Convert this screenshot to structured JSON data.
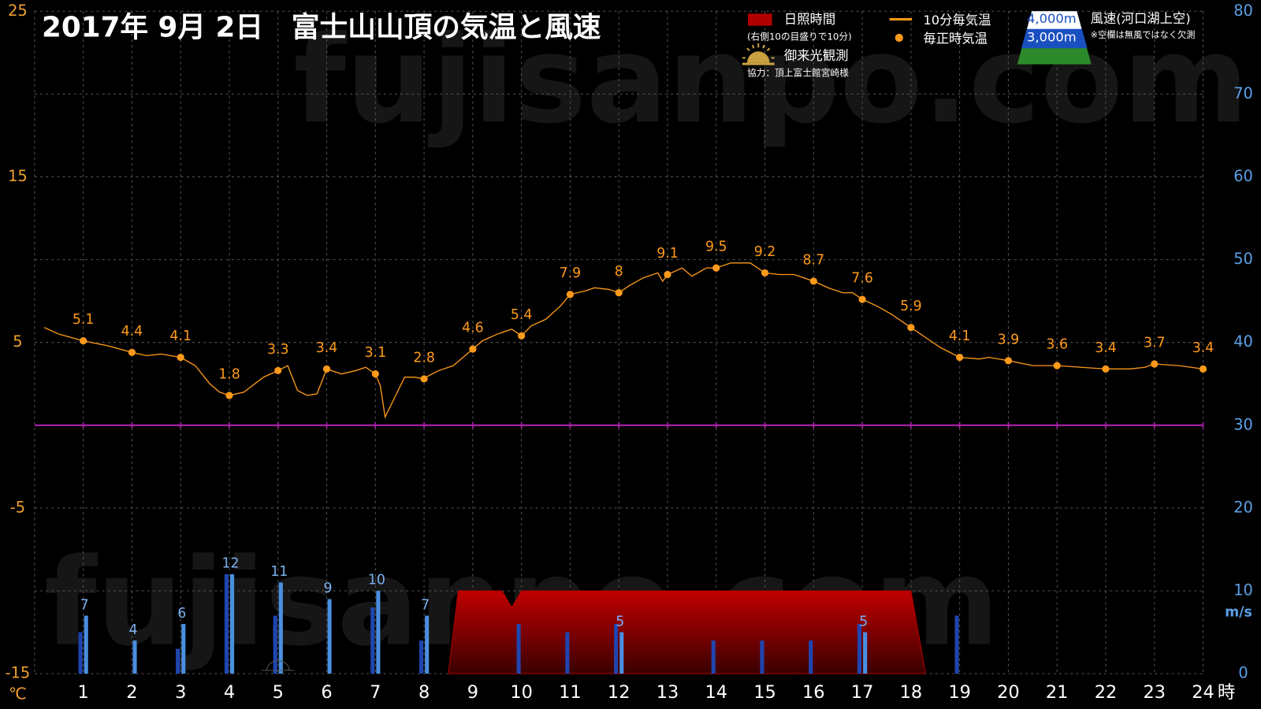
{
  "chart_data": {
    "type": "line",
    "title": "2017年  9月  2日　富士山山頂の気温と風速",
    "watermark": "fujisanpo.com",
    "x_label": "時",
    "y_label": "℃",
    "y2_label": "m/s",
    "xlim": [
      0,
      24
    ],
    "xticks": [
      1,
      2,
      3,
      4,
      5,
      6,
      7,
      8,
      9,
      10,
      11,
      12,
      13,
      14,
      15,
      16,
      17,
      18,
      19,
      20,
      21,
      22,
      23,
      24
    ],
    "ylim": [
      -15,
      25
    ],
    "yticks": [
      -15,
      -5,
      5,
      15,
      25
    ],
    "y2lim": [
      0,
      80
    ],
    "y2ticks": [
      0,
      10,
      20,
      30,
      40,
      50,
      60,
      70,
      80
    ],
    "grid": true,
    "series": [
      {
        "name": "10分毎気温",
        "type": "line",
        "color": "#ff9a1a",
        "x": [
          0.2,
          0.5,
          1.0,
          1.5,
          2.0,
          2.3,
          2.6,
          3.0,
          3.3,
          3.6,
          3.8,
          4.0,
          4.3,
          4.7,
          5.0,
          5.2,
          5.4,
          5.6,
          5.8,
          6.0,
          6.3,
          6.6,
          6.8,
          7.0,
          7.1,
          7.2,
          7.4,
          7.6,
          7.8,
          8.0,
          8.1,
          8.3,
          8.6,
          9.0,
          9.2,
          9.5,
          9.8,
          10.0,
          10.2,
          10.5,
          10.8,
          11.0,
          11.3,
          11.5,
          11.8,
          12.0,
          12.2,
          12.5,
          12.8,
          12.9,
          13.0,
          13.3,
          13.5,
          13.8,
          14.0,
          14.3,
          14.7,
          15.0,
          15.3,
          15.6,
          16.0,
          16.3,
          16.6,
          16.8,
          17.0,
          17.3,
          17.6,
          18.0,
          18.3,
          18.6,
          19.0,
          19.4,
          19.6,
          20.0,
          20.5,
          21.0,
          21.5,
          22.0,
          22.5,
          22.8,
          23.0,
          23.5,
          24.0
        ],
        "values": [
          5.9,
          5.5,
          5.1,
          4.8,
          4.4,
          4.2,
          4.3,
          4.1,
          3.6,
          2.5,
          2.0,
          1.8,
          2.0,
          2.9,
          3.3,
          3.6,
          2.1,
          1.8,
          1.9,
          3.4,
          3.1,
          3.3,
          3.5,
          3.1,
          2.4,
          0.5,
          1.7,
          2.9,
          2.9,
          2.8,
          3.0,
          3.3,
          3.6,
          4.6,
          5.1,
          5.5,
          5.8,
          5.4,
          6.0,
          6.4,
          7.2,
          7.9,
          8.1,
          8.3,
          8.2,
          8.0,
          8.4,
          8.9,
          9.2,
          8.7,
          9.1,
          9.5,
          9.0,
          9.5,
          9.5,
          9.8,
          9.8,
          9.2,
          9.1,
          9.1,
          8.7,
          8.3,
          8.0,
          8.0,
          7.6,
          7.2,
          6.7,
          5.9,
          5.3,
          4.7,
          4.1,
          4.0,
          4.1,
          3.9,
          3.6,
          3.6,
          3.5,
          3.4,
          3.4,
          3.5,
          3.7,
          3.6,
          3.4
        ]
      },
      {
        "name": "毎正時気温",
        "type": "scatter",
        "color": "#ff9a1a",
        "x": [
          1,
          2,
          3,
          4,
          5,
          6,
          7,
          8,
          9,
          10,
          11,
          12,
          13,
          14,
          15,
          16,
          17,
          18,
          19,
          20,
          21,
          22,
          23,
          24
        ],
        "values": [
          5.1,
          4.4,
          4.1,
          1.8,
          3.3,
          3.4,
          3.1,
          2.8,
          4.6,
          5.4,
          7.9,
          8,
          9.1,
          9.5,
          9.2,
          8.7,
          7.6,
          5.9,
          4.1,
          3.9,
          3.6,
          3.4,
          3.7,
          3.4
        ]
      },
      {
        "name": "日照時間",
        "type": "area",
        "axis": "y2",
        "color": "#b00000",
        "x": [
          8.5,
          8.7,
          9.6,
          9.8,
          10.0,
          18.0,
          18.3
        ],
        "values": [
          0,
          10,
          10,
          8,
          10,
          10,
          0
        ]
      },
      {
        "name": "3,000m",
        "type": "bar",
        "axis": "y2",
        "color": "#1f45b0",
        "x": [
          1,
          2,
          3,
          4,
          5,
          6,
          7,
          8,
          9,
          10,
          11,
          12,
          13,
          14,
          15,
          16,
          17,
          18,
          19,
          20,
          21,
          22,
          23,
          24
        ],
        "values": [
          5,
          null,
          3,
          12,
          7,
          null,
          8,
          4,
          null,
          6,
          5,
          6,
          null,
          4,
          4,
          4,
          6,
          null,
          7,
          null,
          null,
          null,
          null,
          null
        ]
      },
      {
        "name": "4,000m",
        "type": "bar",
        "axis": "y2",
        "color": "#4a8fe0",
        "labels": true,
        "x": [
          1,
          2,
          3,
          4,
          5,
          6,
          7,
          8,
          9,
          10,
          11,
          12,
          13,
          14,
          15,
          16,
          17,
          18,
          19,
          20,
          21,
          22,
          23,
          24
        ],
        "values": [
          7,
          4,
          6,
          12,
          11,
          9,
          10,
          7,
          null,
          null,
          null,
          5,
          null,
          null,
          null,
          null,
          5,
          null,
          null,
          null,
          null,
          null,
          null,
          null
        ]
      }
    ],
    "sunshine_note": "(右側10の目盛りで10分)",
    "wind_title": "風速(河口湖上空)",
    "wind_note": "※空欄は無風ではなく欠測",
    "sunrise": {
      "label": "御来光観測",
      "x": 5
    },
    "credit": "協力：頂上富士館宮崎様"
  }
}
